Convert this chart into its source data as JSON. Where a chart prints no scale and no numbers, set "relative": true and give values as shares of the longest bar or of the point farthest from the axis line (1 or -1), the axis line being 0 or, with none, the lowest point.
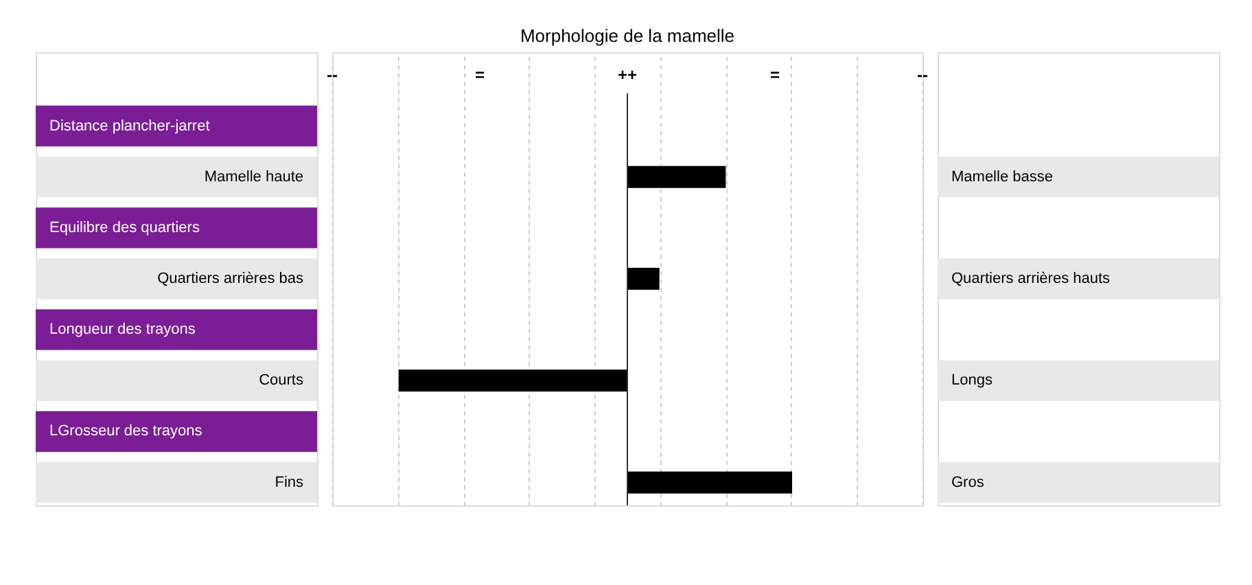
{
  "chart_data": {
    "type": "bar",
    "orientation": "horizontal",
    "relative": true,
    "title": "Morphologie de la mamelle",
    "categories": [
      "Distance plancher-jarret",
      "Equilibre des quartiers",
      "Longueur des trayons",
      "LGrosseur des trayons"
    ],
    "values": [
      0.43,
      0.14,
      -1,
      0.72
    ],
    "color": "#000000",
    "grid": "x",
    "annotations": [
      "--",
      "=",
      "++",
      "=",
      "--",
      "Mamelle haute",
      "Mamelle basse",
      "Quartiers arrières bas",
      "Quartiers arrières hauts",
      "Courts",
      "Longs",
      "Fins",
      "Gros"
    ]
  }
}
